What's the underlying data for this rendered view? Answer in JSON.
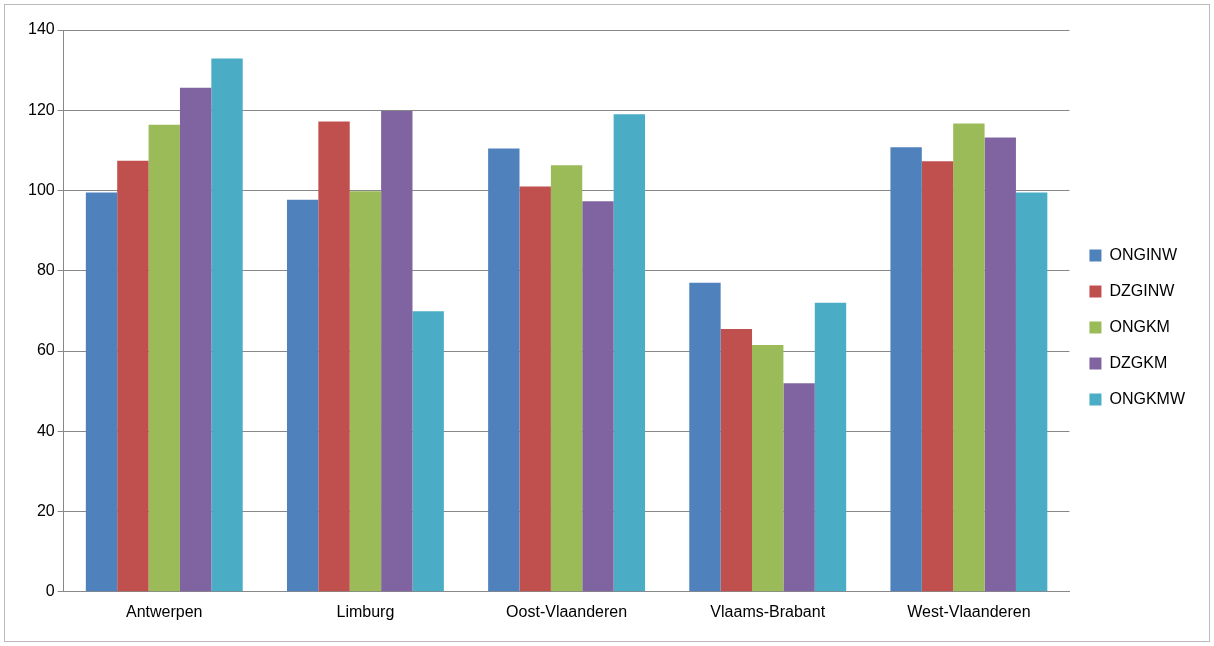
{
  "chart_data": {
    "type": "bar",
    "categories": [
      "Antwerpen",
      "Limburg",
      "Oost-Vlaanderen",
      "Vlaams-Brabant",
      "West-Vlaanderen"
    ],
    "series": [
      {
        "name": "ONGINW",
        "color": "#4f81bd",
        "values": [
          99.5,
          97.7,
          110.5,
          77,
          110.8
        ]
      },
      {
        "name": "DZGINW",
        "color": "#c0504d",
        "values": [
          107.4,
          117.2,
          101,
          65.5,
          107.3
        ]
      },
      {
        "name": "ONGKM",
        "color": "#9bbb59",
        "values": [
          116.4,
          99.8,
          106.3,
          61.5,
          116.7
        ]
      },
      {
        "name": "DZGKM",
        "color": "#8064a2",
        "values": [
          125.6,
          119.8,
          97.3,
          52,
          113.2
        ]
      },
      {
        "name": "ONGKMW",
        "color": "#4bacc6",
        "values": [
          132.9,
          69.9,
          119,
          72,
          99.5
        ]
      }
    ],
    "ylim": [
      0,
      140
    ],
    "yticks": [
      0,
      20,
      40,
      60,
      80,
      100,
      120,
      140
    ],
    "grid": "y",
    "legend": "right"
  }
}
